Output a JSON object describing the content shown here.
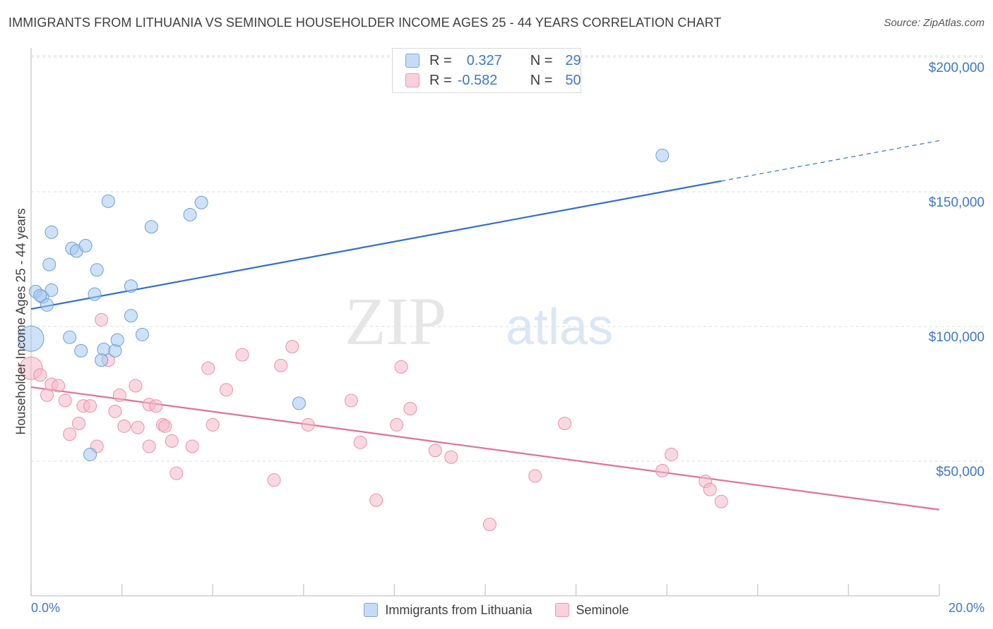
{
  "title": "IMMIGRANTS FROM LITHUANIA VS SEMINOLE HOUSEHOLDER INCOME AGES 25 - 44 YEARS CORRELATION CHART",
  "source": "Source: ZipAtlas.com",
  "watermark": {
    "zip": "ZIP",
    "atlas": "atlas"
  },
  "legend_top": [
    {
      "r_label": "R =",
      "r_value": "0.327",
      "n_label": "N =",
      "n_value": "29",
      "color": "#a8c8f0"
    },
    {
      "r_label": "R =",
      "r_value": "-0.582",
      "n_label": "N =",
      "n_value": "50",
      "color": "#f5b8cb"
    }
  ],
  "chart_data": {
    "type": "scatter",
    "title": "IMMIGRANTS FROM LITHUANIA VS SEMINOLE HOUSEHOLDER INCOME AGES 25 - 44 YEARS CORRELATION CHART",
    "xlabel": "",
    "ylabel": "Householder Income Ages 25 - 44 years",
    "xlim": [
      0,
      20
    ],
    "ylim": [
      0,
      210000
    ],
    "x_tick_labels": [
      "0.0%",
      "20.0%"
    ],
    "y_ticks": [
      50000,
      100000,
      150000,
      200000
    ],
    "y_tick_labels": [
      "$50,000",
      "$100,000",
      "$150,000",
      "$200,000"
    ],
    "grid": "horizontal dashed",
    "legend_placement": "bottom",
    "series": [
      {
        "name": "Immigrants from Lithuania",
        "color": "#a8c8f0",
        "stroke": "#6a9fd8",
        "line_color": "#2f6fcc",
        "trend": {
          "x0": 0,
          "y0": 106500,
          "x1": 15.2,
          "y1": 154000,
          "x_dash_end": 20,
          "y_dash_end": 169000
        },
        "points": [
          [
            0.1,
            113000,
            9
          ],
          [
            0.25,
            111000,
            9
          ],
          [
            0.35,
            108000,
            9
          ],
          [
            0.2,
            111500,
            9
          ],
          [
            0.45,
            113500,
            9
          ],
          [
            0.0,
            95500,
            18
          ],
          [
            0.4,
            123000,
            9
          ],
          [
            0.45,
            135000,
            9
          ],
          [
            0.9,
            129000,
            9
          ],
          [
            1.0,
            128000,
            9
          ],
          [
            1.2,
            130000,
            9
          ],
          [
            0.85,
            96000,
            9
          ],
          [
            1.45,
            121000,
            9
          ],
          [
            1.4,
            112000,
            9
          ],
          [
            1.1,
            91000,
            9
          ],
          [
            1.7,
            146500,
            9
          ],
          [
            1.6,
            91500,
            9
          ],
          [
            1.85,
            91000,
            9
          ],
          [
            1.9,
            95000,
            9
          ],
          [
            1.55,
            87500,
            9
          ],
          [
            2.2,
            115000,
            9
          ],
          [
            2.2,
            104000,
            9
          ],
          [
            2.45,
            97000,
            9
          ],
          [
            2.65,
            137000,
            9
          ],
          [
            3.5,
            141500,
            9
          ],
          [
            3.75,
            146000,
            9
          ],
          [
            1.3,
            52500,
            9
          ],
          [
            5.9,
            71500,
            9
          ],
          [
            13.9,
            163500,
            9
          ]
        ]
      },
      {
        "name": "Seminole",
        "color": "#f5b8cb",
        "stroke": "#e890aa",
        "line_color": "#e0709a",
        "trend": {
          "x0": 0,
          "y0": 77500,
          "x1": 20,
          "y1": 32000
        },
        "points": [
          [
            0.0,
            84500,
            16
          ],
          [
            0.2,
            82000,
            9
          ],
          [
            0.35,
            74500,
            9
          ],
          [
            0.45,
            78500,
            9
          ],
          [
            0.6,
            78000,
            9
          ],
          [
            0.75,
            72500,
            9
          ],
          [
            0.85,
            60000,
            9
          ],
          [
            1.05,
            64000,
            9
          ],
          [
            1.15,
            70500,
            9
          ],
          [
            1.3,
            70500,
            9
          ],
          [
            1.45,
            55500,
            9
          ],
          [
            1.55,
            102500,
            9
          ],
          [
            1.7,
            87500,
            9
          ],
          [
            1.85,
            68500,
            9
          ],
          [
            1.95,
            74500,
            9
          ],
          [
            2.05,
            63000,
            9
          ],
          [
            2.3,
            78000,
            9
          ],
          [
            2.35,
            62500,
            9
          ],
          [
            2.6,
            71000,
            9
          ],
          [
            2.6,
            55500,
            9
          ],
          [
            2.75,
            70500,
            9
          ],
          [
            2.9,
            63500,
            9
          ],
          [
            2.95,
            63000,
            9
          ],
          [
            3.1,
            57500,
            9
          ],
          [
            3.2,
            45500,
            9
          ],
          [
            3.55,
            55500,
            9
          ],
          [
            3.9,
            84500,
            9
          ],
          [
            4.0,
            63500,
            9
          ],
          [
            4.3,
            76500,
            9
          ],
          [
            4.65,
            89500,
            9
          ],
          [
            5.35,
            43000,
            9
          ],
          [
            5.5,
            85500,
            9
          ],
          [
            5.75,
            92500,
            9
          ],
          [
            6.1,
            63500,
            9
          ],
          [
            7.05,
            72500,
            9
          ],
          [
            7.25,
            57000,
            9
          ],
          [
            7.6,
            35500,
            9
          ],
          [
            8.05,
            63500,
            9
          ],
          [
            8.15,
            85000,
            9
          ],
          [
            8.35,
            69500,
            9
          ],
          [
            8.9,
            54000,
            9
          ],
          [
            9.25,
            51500,
            9
          ],
          [
            10.1,
            26500,
            9
          ],
          [
            11.1,
            44500,
            9
          ],
          [
            11.75,
            64000,
            9
          ],
          [
            13.9,
            46500,
            9
          ],
          [
            14.1,
            52500,
            9
          ],
          [
            14.85,
            42500,
            9
          ],
          [
            14.95,
            39500,
            9
          ],
          [
            15.2,
            35000,
            9
          ]
        ]
      }
    ]
  }
}
